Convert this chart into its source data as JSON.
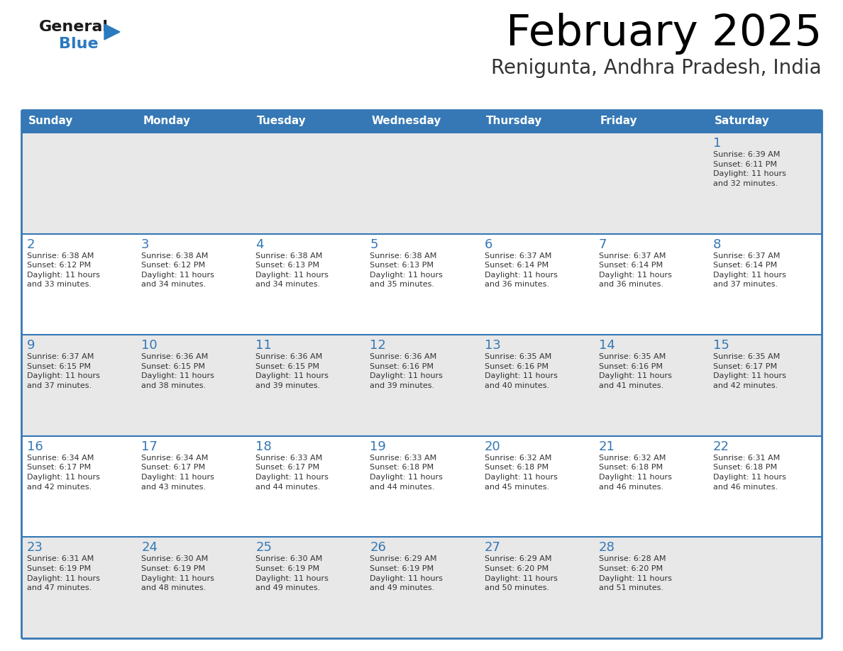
{
  "title": "February 2025",
  "subtitle": "Renigunta, Andhra Pradesh, India",
  "header_bg_color": "#3578b5",
  "header_text_color": "#ffffff",
  "cell_bg_color": "#ffffff",
  "alt_cell_bg_color": "#e8e8e8",
  "border_color": "#3578b5",
  "day_headers": [
    "Sunday",
    "Monday",
    "Tuesday",
    "Wednesday",
    "Thursday",
    "Friday",
    "Saturday"
  ],
  "title_color": "#000000",
  "subtitle_color": "#333333",
  "day_number_color": "#3578b5",
  "cell_text_color": "#333333",
  "logo_general_color": "#1a1a1a",
  "logo_blue_color": "#2a7abf",
  "weeks": [
    [
      {
        "day": null,
        "info": null
      },
      {
        "day": null,
        "info": null
      },
      {
        "day": null,
        "info": null
      },
      {
        "day": null,
        "info": null
      },
      {
        "day": null,
        "info": null
      },
      {
        "day": null,
        "info": null
      },
      {
        "day": 1,
        "info": "Sunrise: 6:39 AM\nSunset: 6:11 PM\nDaylight: 11 hours\nand 32 minutes."
      }
    ],
    [
      {
        "day": 2,
        "info": "Sunrise: 6:38 AM\nSunset: 6:12 PM\nDaylight: 11 hours\nand 33 minutes."
      },
      {
        "day": 3,
        "info": "Sunrise: 6:38 AM\nSunset: 6:12 PM\nDaylight: 11 hours\nand 34 minutes."
      },
      {
        "day": 4,
        "info": "Sunrise: 6:38 AM\nSunset: 6:13 PM\nDaylight: 11 hours\nand 34 minutes."
      },
      {
        "day": 5,
        "info": "Sunrise: 6:38 AM\nSunset: 6:13 PM\nDaylight: 11 hours\nand 35 minutes."
      },
      {
        "day": 6,
        "info": "Sunrise: 6:37 AM\nSunset: 6:14 PM\nDaylight: 11 hours\nand 36 minutes."
      },
      {
        "day": 7,
        "info": "Sunrise: 6:37 AM\nSunset: 6:14 PM\nDaylight: 11 hours\nand 36 minutes."
      },
      {
        "day": 8,
        "info": "Sunrise: 6:37 AM\nSunset: 6:14 PM\nDaylight: 11 hours\nand 37 minutes."
      }
    ],
    [
      {
        "day": 9,
        "info": "Sunrise: 6:37 AM\nSunset: 6:15 PM\nDaylight: 11 hours\nand 37 minutes."
      },
      {
        "day": 10,
        "info": "Sunrise: 6:36 AM\nSunset: 6:15 PM\nDaylight: 11 hours\nand 38 minutes."
      },
      {
        "day": 11,
        "info": "Sunrise: 6:36 AM\nSunset: 6:15 PM\nDaylight: 11 hours\nand 39 minutes."
      },
      {
        "day": 12,
        "info": "Sunrise: 6:36 AM\nSunset: 6:16 PM\nDaylight: 11 hours\nand 39 minutes."
      },
      {
        "day": 13,
        "info": "Sunrise: 6:35 AM\nSunset: 6:16 PM\nDaylight: 11 hours\nand 40 minutes."
      },
      {
        "day": 14,
        "info": "Sunrise: 6:35 AM\nSunset: 6:16 PM\nDaylight: 11 hours\nand 41 minutes."
      },
      {
        "day": 15,
        "info": "Sunrise: 6:35 AM\nSunset: 6:17 PM\nDaylight: 11 hours\nand 42 minutes."
      }
    ],
    [
      {
        "day": 16,
        "info": "Sunrise: 6:34 AM\nSunset: 6:17 PM\nDaylight: 11 hours\nand 42 minutes."
      },
      {
        "day": 17,
        "info": "Sunrise: 6:34 AM\nSunset: 6:17 PM\nDaylight: 11 hours\nand 43 minutes."
      },
      {
        "day": 18,
        "info": "Sunrise: 6:33 AM\nSunset: 6:17 PM\nDaylight: 11 hours\nand 44 minutes."
      },
      {
        "day": 19,
        "info": "Sunrise: 6:33 AM\nSunset: 6:18 PM\nDaylight: 11 hours\nand 44 minutes."
      },
      {
        "day": 20,
        "info": "Sunrise: 6:32 AM\nSunset: 6:18 PM\nDaylight: 11 hours\nand 45 minutes."
      },
      {
        "day": 21,
        "info": "Sunrise: 6:32 AM\nSunset: 6:18 PM\nDaylight: 11 hours\nand 46 minutes."
      },
      {
        "day": 22,
        "info": "Sunrise: 6:31 AM\nSunset: 6:18 PM\nDaylight: 11 hours\nand 46 minutes."
      }
    ],
    [
      {
        "day": 23,
        "info": "Sunrise: 6:31 AM\nSunset: 6:19 PM\nDaylight: 11 hours\nand 47 minutes."
      },
      {
        "day": 24,
        "info": "Sunrise: 6:30 AM\nSunset: 6:19 PM\nDaylight: 11 hours\nand 48 minutes."
      },
      {
        "day": 25,
        "info": "Sunrise: 6:30 AM\nSunset: 6:19 PM\nDaylight: 11 hours\nand 49 minutes."
      },
      {
        "day": 26,
        "info": "Sunrise: 6:29 AM\nSunset: 6:19 PM\nDaylight: 11 hours\nand 49 minutes."
      },
      {
        "day": 27,
        "info": "Sunrise: 6:29 AM\nSunset: 6:20 PM\nDaylight: 11 hours\nand 50 minutes."
      },
      {
        "day": 28,
        "info": "Sunrise: 6:28 AM\nSunset: 6:20 PM\nDaylight: 11 hours\nand 51 minutes."
      },
      {
        "day": null,
        "info": null
      }
    ]
  ]
}
